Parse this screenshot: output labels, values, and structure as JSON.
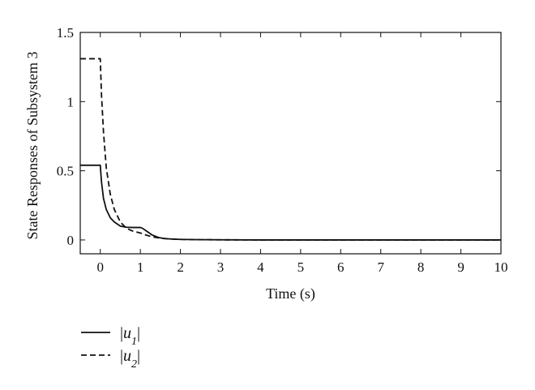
{
  "chart_data": {
    "type": "line",
    "xlabel": "Time (s)",
    "ylabel": "State Responses of Subsystem 3",
    "xlim": [
      -0.5,
      10
    ],
    "ylim": [
      -0.1,
      1.5
    ],
    "xticks": [
      0,
      1,
      2,
      3,
      4,
      5,
      6,
      7,
      8,
      9,
      10
    ],
    "yticks": [
      0,
      0.5,
      1,
      1.5
    ],
    "xtick_labels": [
      "0",
      "1",
      "2",
      "3",
      "4",
      "5",
      "6",
      "7",
      "8",
      "9",
      "10"
    ],
    "ytick_labels": [
      "0",
      "0.5",
      "1",
      "1.5"
    ],
    "grid": false,
    "legend_position": "below-left",
    "series": [
      {
        "name": "|u1|",
        "legend_var": "u",
        "legend_sub": "1",
        "style": "solid",
        "color": "#111111",
        "x": [
          -0.5,
          0,
          0.03,
          0.08,
          0.15,
          0.25,
          0.35,
          0.5,
          0.65,
          0.8,
          1.0,
          1.05,
          1.15,
          1.3,
          1.45,
          1.6,
          1.8,
          2.0,
          2.5,
          3.0,
          4.0,
          6.0,
          8.0,
          10.0
        ],
        "y": [
          0.54,
          0.54,
          0.42,
          0.3,
          0.22,
          0.16,
          0.13,
          0.1,
          0.092,
          0.09,
          0.09,
          0.085,
          0.065,
          0.035,
          0.018,
          0.01,
          0.006,
          0.004,
          0.002,
          0.001,
          0.0,
          0.0,
          0.0,
          0.0
        ]
      },
      {
        "name": "|u2|",
        "legend_var": "u",
        "legend_sub": "2",
        "style": "dashed",
        "color": "#111111",
        "x": [
          -0.5,
          0,
          0.03,
          0.08,
          0.15,
          0.25,
          0.35,
          0.5,
          0.65,
          0.8,
          1.0,
          1.15,
          1.3,
          1.5,
          1.7,
          2.0,
          2.5,
          3.0,
          4.0,
          6.0,
          8.0,
          10.0
        ],
        "y": [
          1.31,
          1.31,
          1.05,
          0.78,
          0.52,
          0.33,
          0.22,
          0.13,
          0.085,
          0.065,
          0.05,
          0.035,
          0.022,
          0.013,
          0.008,
          0.004,
          0.002,
          0.001,
          0.0,
          0.0,
          0.0,
          0.0
        ]
      }
    ]
  }
}
